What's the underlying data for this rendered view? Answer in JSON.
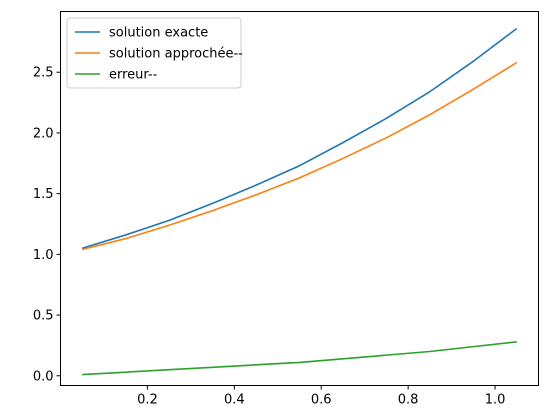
{
  "chart_data": {
    "type": "line",
    "title": "",
    "xlabel": "",
    "ylabel": "",
    "xlim": [
      0.0,
      1.1
    ],
    "ylim": [
      -0.08,
      3.0
    ],
    "xticks": [
      0.2,
      0.4,
      0.6,
      0.8,
      1.0
    ],
    "xtick_labels": [
      "0.2",
      "0.4",
      "0.6",
      "0.8",
      "1.0"
    ],
    "yticks": [
      0.0,
      0.5,
      1.0,
      1.5,
      2.0,
      2.5
    ],
    "ytick_labels": [
      "0.0",
      "0.5",
      "1.0",
      "1.5",
      "2.0",
      "2.5"
    ],
    "grid": false,
    "legend_position": "top-left",
    "x": [
      0.05,
      0.15,
      0.25,
      0.35,
      0.45,
      0.55,
      0.65,
      0.75,
      0.85,
      0.95,
      1.05
    ],
    "series": [
      {
        "name": "solution exacte",
        "color": "#1f77b4",
        "values": [
          1.05,
          1.16,
          1.28,
          1.42,
          1.57,
          1.73,
          1.92,
          2.12,
          2.34,
          2.59,
          2.86
        ]
      },
      {
        "name": "solution approchée--",
        "color": "#ff7f0e",
        "values": [
          1.04,
          1.13,
          1.24,
          1.36,
          1.49,
          1.63,
          1.79,
          1.96,
          2.15,
          2.36,
          2.58
        ]
      },
      {
        "name": "erreur--",
        "color": "#2ca02c",
        "values": [
          0.01,
          0.03,
          0.05,
          0.07,
          0.09,
          0.11,
          0.14,
          0.17,
          0.2,
          0.24,
          0.28
        ]
      }
    ]
  }
}
